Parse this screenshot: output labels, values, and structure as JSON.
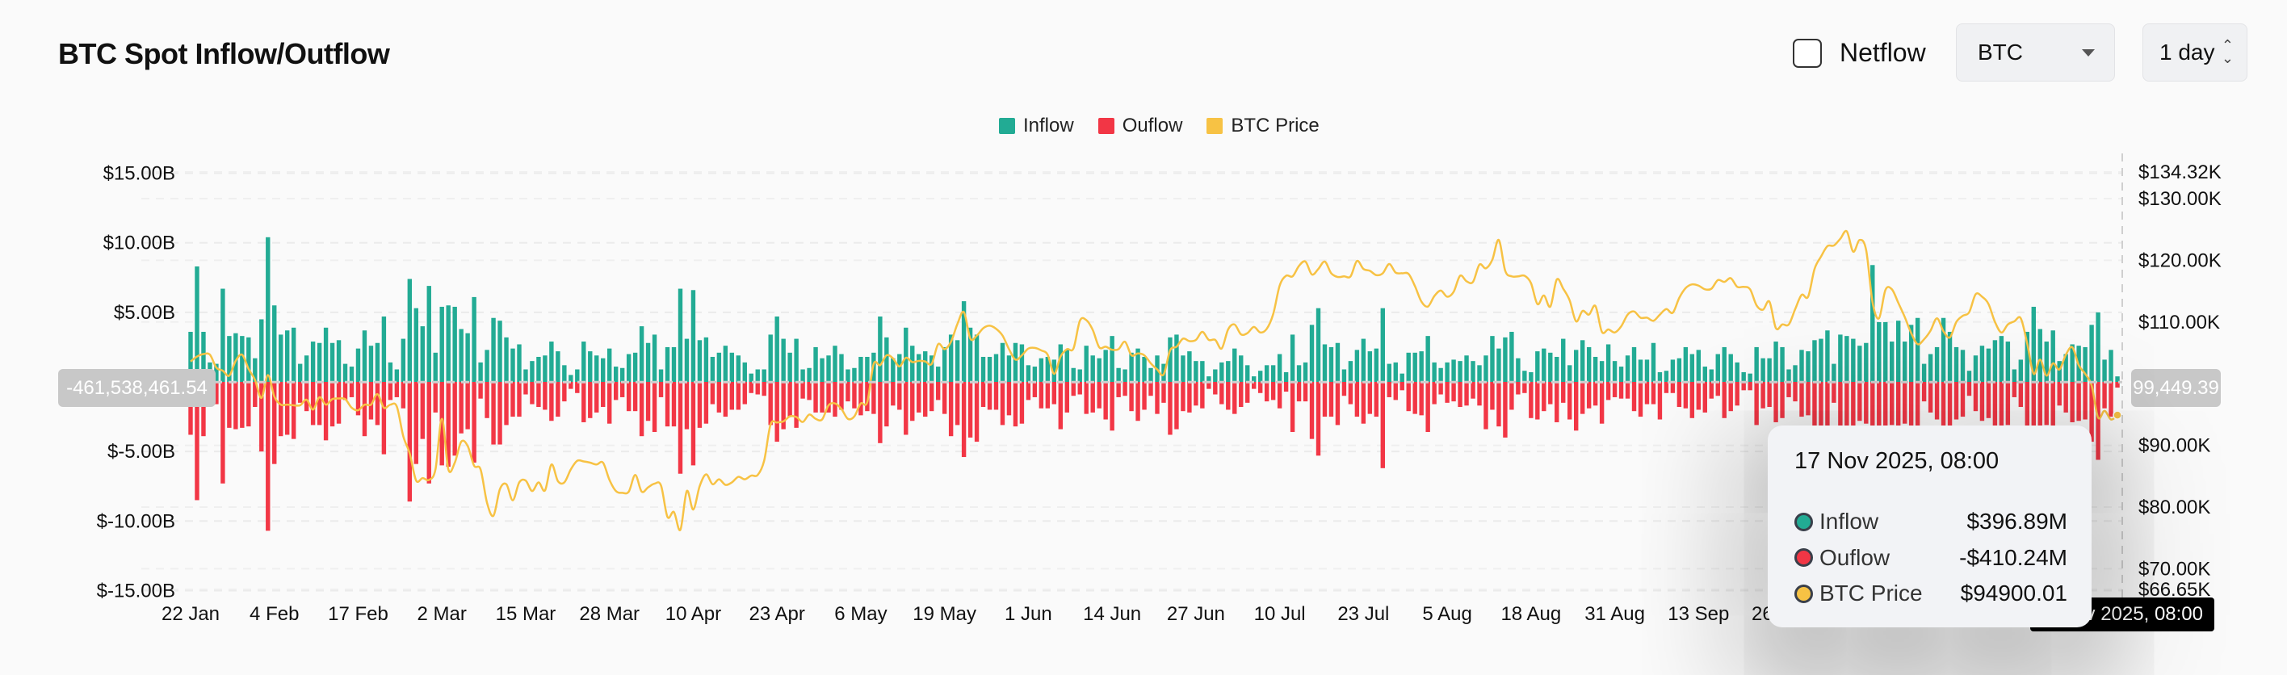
{
  "header": {
    "title": "BTC Spot Inflow/Outflow",
    "netflow_label": "Netflow",
    "netflow_checked": false,
    "coin_select": "BTC",
    "interval_select": "1 day"
  },
  "colors": {
    "inflow": "#22ab94",
    "outflow": "#f23645",
    "price": "#f7c244"
  },
  "crosshair": {
    "left_value": "-461,538,461.54",
    "right_value": "99,449.39",
    "x_value": "17 Nov 2025, 08:00"
  },
  "tooltip": {
    "title": "17 Nov 2025, 08:00",
    "rows": [
      {
        "label": "Inflow",
        "value": "$396.89M",
        "color": "#22ab94"
      },
      {
        "label": "Ouflow",
        "value": "-$410.24M",
        "color": "#f23645"
      },
      {
        "label": "BTC Price",
        "value": "$94900.01",
        "color": "#f7c244"
      }
    ]
  },
  "chart_data": {
    "type": "bar",
    "title": "BTC Spot Inflow/Outflow",
    "legend": [
      "Inflow",
      "Ouflow",
      "BTC Price"
    ],
    "legend_position": "top-center",
    "grid": true,
    "x_start": "2025-01-22",
    "x_end": "2025-11-17",
    "x_interval": "1 day",
    "x_ticks": [
      "22 Jan",
      "4 Feb",
      "17 Feb",
      "2 Mar",
      "15 Mar",
      "28 Mar",
      "10 Apr",
      "23 Apr",
      "6 May",
      "19 May",
      "1 Jun",
      "14 Jun",
      "27 Jun",
      "10 Jul",
      "23 Jul",
      "5 Aug",
      "18 Aug",
      "31 Aug",
      "13 Sep",
      "26 Sep"
    ],
    "y_left": {
      "unit": "USD billions",
      "range": [
        -15,
        15
      ],
      "ticks": [
        "$15.00B",
        "$10.00B",
        "$5.00B",
        "$-5.00B",
        "$-10.00B",
        "$-15.00B"
      ],
      "tick_values": [
        15,
        10,
        5,
        -5,
        -10,
        -15
      ]
    },
    "y_right": {
      "unit": "USD thousands",
      "range": [
        66.65,
        134.32
      ],
      "ticks": [
        "$134.32K",
        "$130.00K",
        "$120.00K",
        "$110.00K",
        "$90.00K",
        "$80.00K",
        "$70.00K",
        "$66.65K"
      ],
      "tick_values": [
        134.32,
        130,
        120,
        110,
        90,
        80,
        70,
        66.65
      ]
    },
    "series": [
      {
        "name": "Inflow",
        "type": "bar",
        "axis": "left",
        "values": [
          3.6,
          8.3,
          3.6,
          1.4,
          1.3,
          6.7,
          3.3,
          3.5,
          3.3,
          3.2,
          1.7,
          4.5,
          10.4,
          5.5,
          3.4,
          3.7,
          3.9,
          1.3,
          1.9,
          2.9,
          2.8,
          3.9,
          2.8,
          3.0,
          1.3,
          1.1,
          2.4,
          3.7,
          2.6,
          2.8,
          4.7,
          1.4,
          0.9,
          3.1,
          7.4,
          5.3,
          4.0,
          6.9,
          2.1,
          5.4,
          5.5,
          5.4,
          3.8,
          3.5,
          6.1,
          1.4,
          2.3,
          4.6,
          4.4,
          3.2,
          2.4,
          2.7,
          0.9,
          1.5,
          1.8,
          1.9,
          2.9,
          2.2,
          1.2,
          0.5,
          0.9,
          2.9,
          2.2,
          1.9,
          1.7,
          2.4,
          1.1,
          1.0,
          2.0,
          2.1,
          4.0,
          2.8,
          3.4,
          0.9,
          2.5,
          2.5,
          6.7,
          3.1,
          6.6,
          3.0,
          3.2,
          1.8,
          2.1,
          2.6,
          2.1,
          1.9,
          1.4,
          0.6,
          0.9,
          0.9,
          3.4,
          4.7,
          3.1,
          2.1,
          3.1,
          0.9,
          1.0,
          2.5,
          1.7,
          1.9,
          2.6,
          2.0,
          0.9,
          1.0,
          1.8,
          1.8,
          2.1,
          4.7,
          3.2,
          1.7,
          2.0,
          3.9,
          2.6,
          2.0,
          2.2,
          1.9,
          1.1,
          2.5,
          3.4,
          3.0,
          5.8,
          3.9,
          3.4,
          1.8,
          1.8,
          2.0,
          2.8,
          1.9,
          2.8,
          2.7,
          1.2,
          1.1,
          1.7,
          1.8,
          1.6,
          2.7,
          2.3,
          1.0,
          0.9,
          2.6,
          1.9,
          1.7,
          2.3,
          3.3,
          1.0,
          0.9,
          2.1,
          2.4,
          1.8,
          1.0,
          1.9,
          1.3,
          3.2,
          3.4,
          1.9,
          2.2,
          1.5,
          1.5,
          0.4,
          0.9,
          1.4,
          1.5,
          2.4,
          1.9,
          1.2,
          0.4,
          0.8,
          1.2,
          1.2,
          2.0,
          0.7,
          3.4,
          1.2,
          1.4,
          4.1,
          5.3,
          2.7,
          2.5,
          2.8,
          0.9,
          1.5,
          2.3,
          3.1,
          2.2,
          2.4,
          5.3,
          1.3,
          1.4,
          0.6,
          2.1,
          2.1,
          2.2,
          3.3,
          1.4,
          1.0,
          1.4,
          1.6,
          1.5,
          1.9,
          1.5,
          1.2,
          1.9,
          3.3,
          2.4,
          3.2,
          3.6,
          1.7,
          0.8,
          0.7,
          2.2,
          2.4,
          2.1,
          1.8,
          3.1,
          1.2,
          2.3,
          3.0,
          2.5,
          1.8,
          1.5,
          2.7,
          1.5,
          1.1,
          1.9,
          2.5,
          1.6,
          1.6,
          2.8,
          0.7,
          0.8,
          1.6,
          1.7,
          2.5,
          2.0,
          2.3,
          1.1,
          0.9,
          2.0,
          2.5,
          2.0,
          1.4,
          0.7,
          0.6,
          2.5,
          1.7,
          1.7,
          2.9,
          2.5,
          0.9,
          1.2,
          2.3,
          2.2,
          3.0,
          3.1,
          3.7,
          1.3,
          3.4,
          3.3,
          3.1,
          2.6,
          2.8,
          8.4,
          4.3,
          4.3,
          2.9,
          4.4,
          2.9,
          4.1,
          4.6,
          1.3,
          2.0,
          2.5,
          4.6,
          3.6,
          2.5,
          2.3,
          0.8,
          1.9,
          2.6,
          2.4,
          3.0,
          3.3,
          2.9,
          0.9,
          1.6,
          3.6,
          5.4,
          3.8,
          2.9,
          3.7,
          1.5,
          2.0,
          2.7,
          2.6,
          2.5,
          4.1,
          5.0,
          1.6,
          2.3,
          0.397
        ]
      },
      {
        "name": "Ouflow",
        "type": "bar",
        "axis": "left",
        "values": [
          -3.8,
          -8.5,
          -3.9,
          -1.6,
          -1.6,
          -7.3,
          -3.3,
          -3.4,
          -3.3,
          -3.2,
          -1.8,
          -5.0,
          -10.7,
          -5.9,
          -3.9,
          -3.8,
          -4.1,
          -1.5,
          -2.1,
          -3.1,
          -3.1,
          -4.2,
          -3.2,
          -3.0,
          -1.3,
          -1.1,
          -2.4,
          -3.9,
          -2.7,
          -3.1,
          -5.2,
          -1.3,
          -1.1,
          -1.9,
          -8.6,
          -5.9,
          -4.1,
          -7.3,
          -2.2,
          -6.0,
          -6.1,
          -5.3,
          -3.7,
          -3.4,
          -5.8,
          -1.2,
          -2.6,
          -4.5,
          -4.5,
          -3.1,
          -2.5,
          -2.5,
          -0.9,
          -1.6,
          -1.8,
          -2.0,
          -2.8,
          -2.5,
          -1.4,
          -0.5,
          -0.8,
          -2.9,
          -2.6,
          -2.2,
          -1.8,
          -3.0,
          -1.3,
          -1.1,
          -2.1,
          -2.1,
          -3.9,
          -2.8,
          -3.6,
          -1.1,
          -3.2,
          -3.2,
          -6.6,
          -3.4,
          -6.0,
          -3.3,
          -3.0,
          -1.6,
          -2.2,
          -2.5,
          -2.0,
          -2.0,
          -1.6,
          -0.8,
          -0.9,
          -1.0,
          -3.1,
          -4.3,
          -3.4,
          -2.5,
          -3.3,
          -1.2,
          -1.3,
          -2.2,
          -2.2,
          -2.2,
          -2.5,
          -2.0,
          -1.4,
          -1.9,
          -2.4,
          -2.1,
          -2.3,
          -4.4,
          -3.2,
          -1.7,
          -2.0,
          -3.8,
          -2.8,
          -2.2,
          -2.5,
          -2.1,
          -1.3,
          -2.3,
          -3.9,
          -3.1,
          -5.4,
          -4.0,
          -4.3,
          -1.8,
          -2.0,
          -2.0,
          -3.1,
          -2.4,
          -3.2,
          -3.0,
          -1.3,
          -1.1,
          -1.9,
          -1.9,
          -1.6,
          -3.4,
          -2.2,
          -1.0,
          -0.9,
          -2.3,
          -2.2,
          -1.9,
          -2.7,
          -3.5,
          -1.1,
          -1.0,
          -2.1,
          -2.8,
          -2.0,
          -1.0,
          -2.3,
          -1.5,
          -3.8,
          -3.4,
          -2.1,
          -2.2,
          -1.7,
          -1.9,
          -0.5,
          -0.9,
          -1.6,
          -2.0,
          -2.3,
          -1.8,
          -1.5,
          -0.5,
          -0.8,
          -1.4,
          -1.3,
          -1.9,
          -0.7,
          -3.6,
          -1.4,
          -1.4,
          -4.1,
          -5.3,
          -2.5,
          -2.5,
          -3.1,
          -1.0,
          -1.6,
          -2.5,
          -3.0,
          -2.3,
          -2.5,
          -6.2,
          -1.1,
          -1.3,
          -0.6,
          -2.1,
          -2.3,
          -2.4,
          -3.6,
          -1.6,
          -0.9,
          -1.5,
          -1.4,
          -1.8,
          -1.7,
          -1.2,
          -1.7,
          -3.4,
          -2.0,
          -3.2,
          -4.0,
          -2.0,
          -0.9,
          -0.8,
          -2.6,
          -2.7,
          -2.1,
          -1.6,
          -2.9,
          -1.5,
          -2.7,
          -3.5,
          -2.3,
          -1.9,
          -1.7,
          -3.0,
          -1.3,
          -1.1,
          -1.2,
          -1.2,
          -2.1,
          -2.5,
          -1.6,
          -1.6,
          -2.7,
          -0.8,
          -0.8,
          -1.8,
          -1.9,
          -2.6,
          -2.0,
          -2.2,
          -1.2,
          -1.0,
          -2.6,
          -2.1,
          -1.7,
          -0.6,
          -0.6,
          -3.1,
          -1.9,
          -1.8,
          -2.9,
          -2.6,
          -1.1,
          -1.4,
          -2.5,
          -2.4,
          -3.2,
          -3.4,
          -4.0,
          -1.5,
          -3.6,
          -3.5,
          -3.3,
          -2.8,
          -3.0,
          -9.0,
          -4.6,
          -4.5,
          -3.1,
          -4.7,
          -3.0,
          -4.4,
          -4.9,
          -1.4,
          -2.2,
          -2.7,
          -4.9,
          -3.8,
          -2.7,
          -2.5,
          -1.0,
          -2.1,
          -2.8,
          -2.6,
          -3.2,
          -3.5,
          -3.1,
          -1.1,
          -1.8,
          -3.8,
          -5.8,
          -4.0,
          -3.1,
          -3.9,
          -1.7,
          -2.2,
          -2.9,
          -2.8,
          -2.7,
          -4.3,
          -5.6,
          -1.9,
          -2.5,
          -0.41
        ]
      },
      {
        "name": "BTC Price",
        "type": "line",
        "axis": "right",
        "values": [
          103.6,
          104.4,
          104.8,
          104.7,
          102.6,
          102.1,
          101.3,
          103.7,
          104.7,
          102.4,
          100.6,
          97.7,
          101.4,
          97.9,
          96.6,
          96.6,
          96.5,
          96.5,
          97.4,
          95.8,
          97.8,
          96.6,
          97.5,
          97.6,
          97.5,
          96.1,
          95.7,
          96.6,
          96.6,
          98.3,
          96.1,
          96.6,
          96.3,
          91.5,
          88.7,
          84.3,
          84.7,
          84.4,
          86.1,
          94.3,
          86.1,
          87.2,
          90.6,
          89.9,
          86.7,
          86.1,
          80.7,
          78.6,
          82.9,
          83.7,
          81.1,
          84.0,
          84.3,
          82.6,
          84.0,
          82.7,
          86.9,
          84.2,
          84.0,
          86.1,
          87.5,
          87.4,
          87.2,
          86.9,
          87.2,
          84.4,
          82.6,
          82.3,
          82.5,
          85.2,
          82.5,
          83.2,
          83.8,
          83.5,
          78.4,
          79.2,
          76.3,
          82.6,
          79.6,
          83.4,
          85.3,
          83.7,
          84.5,
          83.6,
          84.0,
          84.9,
          84.5,
          85.1,
          85.2,
          87.5,
          93.4,
          93.7,
          93.9,
          94.7,
          94.6,
          93.8,
          95.0,
          94.3,
          94.2,
          96.5,
          96.8,
          95.9,
          94.3,
          94.7,
          96.8,
          97.0,
          103.2,
          103.0,
          104.6,
          104.1,
          102.8,
          104.2,
          103.5,
          103.7,
          103.6,
          103.2,
          106.4,
          105.6,
          106.8,
          109.7,
          111.6,
          107.3,
          107.8,
          109.0,
          109.4,
          108.9,
          107.8,
          105.6,
          103.9,
          104.6,
          105.7,
          105.8,
          105.4,
          104.7,
          101.6,
          104.4,
          105.6,
          105.7,
          110.2,
          110.3,
          108.7,
          105.9,
          106.0,
          105.5,
          105.6,
          106.8,
          104.6,
          104.9,
          104.6,
          103.3,
          102.3,
          101.5,
          105.4,
          106.0,
          107.3,
          106.9,
          107.1,
          108.4,
          107.1,
          107.1,
          105.7,
          108.8,
          109.6,
          108.0,
          108.2,
          109.2,
          108.3,
          108.9,
          111.3,
          115.9,
          117.5,
          117.4,
          119.1,
          119.8,
          117.7,
          118.6,
          119.8,
          117.9,
          117.3,
          117.4,
          117.4,
          119.9,
          118.6,
          118.3,
          117.6,
          117.9,
          119.4,
          118.0,
          117.9,
          117.8,
          115.8,
          113.3,
          112.5,
          114.2,
          115.1,
          114.1,
          114.9,
          117.5,
          116.6,
          116.5,
          119.3,
          118.7,
          120.1,
          123.3,
          118.3,
          117.4,
          117.4,
          117.5,
          116.3,
          112.9,
          114.3,
          112.5,
          116.9,
          115.4,
          113.5,
          110.1,
          111.8,
          111.2,
          112.6,
          108.4,
          108.8,
          108.3,
          109.3,
          111.2,
          111.7,
          110.7,
          110.7,
          110.2,
          111.2,
          112.1,
          111.5,
          113.9,
          115.5,
          116.1,
          115.9,
          115.3,
          115.4,
          116.8,
          116.5,
          117.1,
          115.7,
          115.7,
          115.3,
          112.7,
          112.0,
          113.3,
          109.0,
          109.6,
          109.6,
          112.1,
          114.4,
          114.1,
          118.6,
          120.6,
          122.3,
          122.4,
          123.5,
          124.7,
          121.4,
          123.3,
          121.7,
          113.2,
          110.6,
          115.2,
          115.3,
          113.1,
          110.8,
          108.2,
          106.4,
          107.2,
          108.6,
          110.6,
          108.5,
          107.5,
          110.0,
          111.0,
          111.6,
          114.5,
          114.1,
          112.9,
          110.0,
          108.3,
          109.6,
          110.1,
          110.6,
          106.5,
          101.6,
          103.9,
          101.3,
          103.3,
          102.3,
          104.7,
          105.9,
          103.0,
          101.6,
          99.7,
          94.5,
          95.6,
          94.2,
          94.9
        ]
      }
    ]
  }
}
